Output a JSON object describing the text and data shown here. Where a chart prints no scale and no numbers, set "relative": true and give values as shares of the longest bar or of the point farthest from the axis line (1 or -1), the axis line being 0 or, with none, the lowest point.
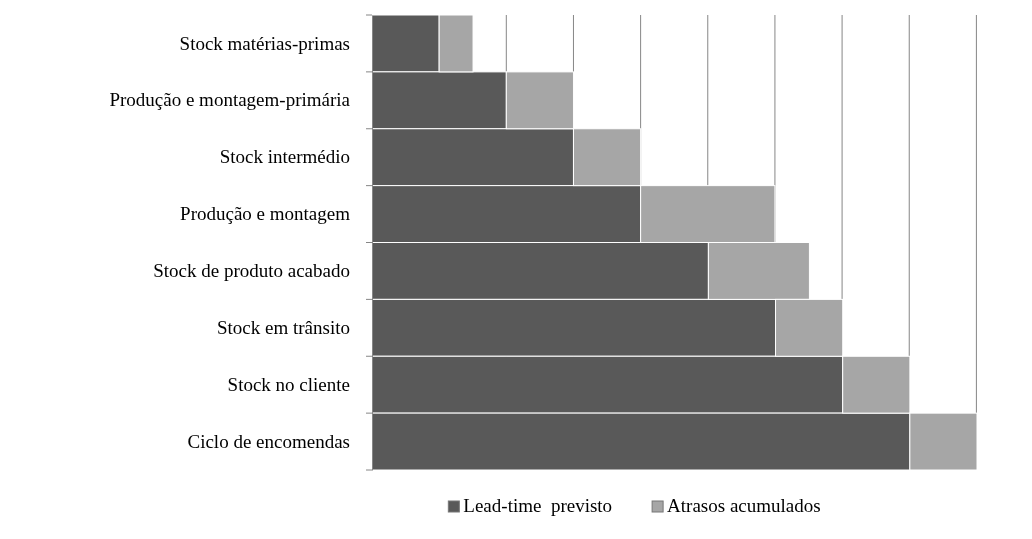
{
  "chart_data": {
    "type": "bar",
    "orientation": "horizontal",
    "stacked": true,
    "relative": true,
    "grid": "x",
    "legend": "bottom",
    "categories": [
      "Stock matérias-primas",
      "Produção e montagem-primária",
      "Stock intermédio",
      "Produção e montagem",
      "Stock de produto acabado",
      "Stock em trânsito",
      "Stock no cliente",
      "Ciclo de encomendas"
    ],
    "series": [
      {
        "name": "Lead-time  previsto",
        "color": "#595959",
        "values": [
          0.111,
          0.222,
          0.333,
          0.444,
          0.556,
          0.667,
          0.778,
          0.889
        ]
      },
      {
        "name": "Atrasos acumulados",
        "color": "#a6a6a6",
        "values": [
          0.056,
          0.111,
          0.111,
          0.222,
          0.167,
          0.111,
          0.111,
          0.111
        ]
      }
    ]
  }
}
